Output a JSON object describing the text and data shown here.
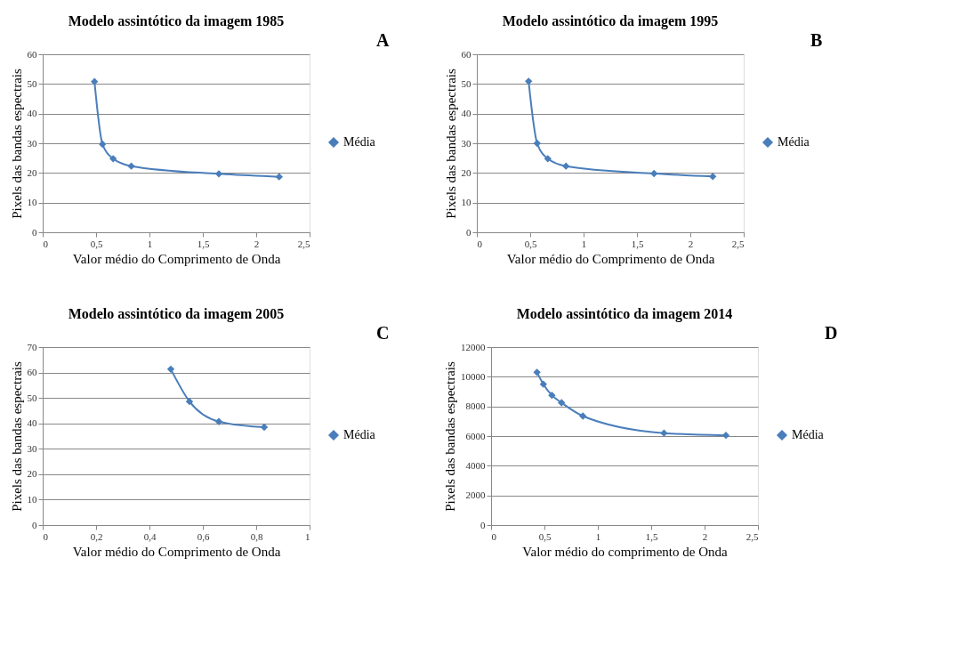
{
  "chart_data": [
    {
      "type": "line",
      "title": "Modelo assintótico da imagem 1985",
      "xlabel": "Valor médio do Comprimento de Onda",
      "ylabel": "Pixels das bandas espectrais",
      "annotations": [
        "A"
      ],
      "x": [
        0.485,
        0.56,
        0.66,
        0.83,
        1.65,
        2.215
      ],
      "series": [
        {
          "name": "Média",
          "color": "#4a7ebb",
          "values": [
            50.8,
            29.7,
            24.8,
            22.3,
            19.7,
            18.7
          ]
        }
      ],
      "xlim": [
        0,
        2.5
      ],
      "xticks": [
        0,
        {
          "value": 0.5,
          "label": "0,5"
        },
        1,
        {
          "value": 1.5,
          "label": "1,5"
        },
        2,
        {
          "value": 2.5,
          "label": "2,5"
        }
      ],
      "ylim": [
        0,
        60
      ],
      "yticks": [
        0,
        10,
        20,
        30,
        40,
        50,
        60
      ],
      "grid": "y",
      "legend": "right",
      "marker": "diamond",
      "line_style": "solid"
    },
    {
      "type": "line",
      "title": "Modelo assintótico da imagem 1995",
      "xlabel": "Valor médio do Comprimento de Onda",
      "ylabel": "Pixels das bandas espectrais",
      "annotations": [
        "B"
      ],
      "x": [
        0.485,
        0.565,
        0.665,
        0.835,
        1.66,
        2.21
      ],
      "series": [
        {
          "name": "Média",
          "color": "#4a7ebb",
          "values": [
            50.9,
            30.0,
            24.8,
            22.3,
            19.8,
            18.8
          ]
        }
      ],
      "xlim": [
        0,
        2.5
      ],
      "xticks": [
        0,
        {
          "value": 0.5,
          "label": "0,5"
        },
        1,
        {
          "value": 1.5,
          "label": "1,5"
        },
        2,
        {
          "value": 2.5,
          "label": "2,5"
        }
      ],
      "ylim": [
        0,
        60
      ],
      "yticks": [
        0,
        10,
        20,
        30,
        40,
        50,
        60
      ],
      "grid": "y",
      "legend": "right",
      "marker": "diamond",
      "line_style": "solid"
    },
    {
      "type": "line",
      "title": "Modelo assintótico da imagem 2005",
      "xlabel": "Valor médio do Comprimento de Onda",
      "ylabel": "Pixels das bandas espectrais",
      "annotations": [
        "C"
      ],
      "x": [
        0.48,
        0.55,
        0.66,
        0.83
      ],
      "series": [
        {
          "name": "Média",
          "color": "#4a7ebb",
          "values": [
            61.3,
            48.6,
            40.7,
            38.5
          ]
        }
      ],
      "xlim": [
        0,
        1
      ],
      "xticks": [
        0,
        {
          "value": 0.2,
          "label": "0,2"
        },
        {
          "value": 0.4,
          "label": "0,4"
        },
        {
          "value": 0.6,
          "label": "0,6"
        },
        {
          "value": 0.8,
          "label": "0,8"
        },
        1
      ],
      "ylim": [
        0,
        70
      ],
      "yticks": [
        0,
        10,
        20,
        30,
        40,
        50,
        60,
        70
      ],
      "grid": "y",
      "legend": "right",
      "marker": "diamond",
      "line_style": "solid"
    },
    {
      "type": "line",
      "title": "Modelo assintótico da imagem 2014",
      "xlabel": "Valor médio do comprimento de Onda",
      "ylabel": "Pixels das bandas espectrais",
      "annotations": [
        "D"
      ],
      "x": [
        0.43,
        0.49,
        0.57,
        0.66,
        0.86,
        1.62,
        2.2
      ],
      "series": [
        {
          "name": "Média",
          "color": "#4a7ebb",
          "values": [
            10300,
            9500,
            8750,
            8250,
            7350,
            6200,
            6050
          ]
        }
      ],
      "xlim": [
        0,
        2.5
      ],
      "xticks": [
        0,
        {
          "value": 0.5,
          "label": "0,5"
        },
        1,
        {
          "value": 1.5,
          "label": "1,5"
        },
        2,
        {
          "value": 2.5,
          "label": "2,5"
        }
      ],
      "ylim": [
        0,
        12000
      ],
      "yticks": [
        0,
        2000,
        4000,
        6000,
        8000,
        10000,
        12000
      ],
      "grid": "y",
      "legend": "right",
      "marker": "diamond",
      "line_style": "solid"
    }
  ]
}
